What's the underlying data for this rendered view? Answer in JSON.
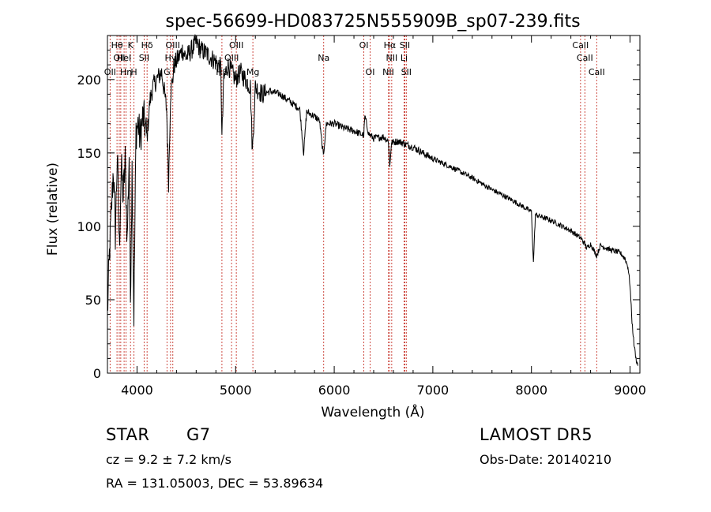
{
  "chart_data": {
    "type": "line",
    "title": "spec-56699-HD083725N555909B_sp07-239.fits",
    "xlabel": "Wavelength (Å)",
    "ylabel": "Flux (relative)",
    "xlim": [
      3700,
      9100
    ],
    "ylim": [
      0,
      230
    ],
    "xticks": [
      4000,
      5000,
      6000,
      7000,
      8000,
      9000
    ],
    "yticks": [
      0,
      50,
      100,
      150,
      200
    ],
    "grid": false,
    "series": [
      {
        "color": "#000000",
        "x": [
          3700,
          3720,
          3740,
          3760,
          3780,
          3800,
          3820,
          3840,
          3860,
          3880,
          3900,
          3920,
          3933,
          3950,
          3968,
          3990,
          4010,
          4030,
          4060,
          4080,
          4101,
          4130,
          4160,
          4200,
          4250,
          4300,
          4320,
          4340,
          4360,
          4380,
          4420,
          4460,
          4500,
          4550,
          4600,
          4650,
          4700,
          4750,
          4800,
          4850,
          4861,
          4880,
          4920,
          4960,
          5000,
          5050,
          5100,
          5150,
          5170,
          5183,
          5200,
          5270,
          5350,
          5450,
          5550,
          5650,
          5690,
          5720,
          5800,
          5850,
          5890,
          5920,
          6000,
          6100,
          6200,
          6300,
          6310,
          6350,
          6400,
          6500,
          6550,
          6563,
          6580,
          6650,
          6720,
          6800,
          6900,
          7000,
          7200,
          7400,
          7600,
          7800,
          8000,
          8020,
          8040,
          8200,
          8400,
          8498,
          8542,
          8560,
          8600,
          8662,
          8700,
          8800,
          8900,
          8950,
          8980,
          9000,
          9020,
          9040,
          9060,
          9080
        ],
        "y": [
          40,
          80,
          110,
          140,
          95,
          150,
          85,
          140,
          120,
          145,
          90,
          150,
          50,
          140,
          40,
          165,
          170,
          160,
          175,
          170,
          160,
          185,
          195,
          200,
          205,
          180,
          130,
          190,
          200,
          210,
          215,
          220,
          215,
          220,
          225,
          220,
          218,
          215,
          212,
          208,
          160,
          200,
          210,
          205,
          200,
          205,
          200,
          195,
          150,
          170,
          195,
          190,
          192,
          190,
          185,
          180,
          150,
          178,
          175,
          172,
          148,
          170,
          170,
          167,
          165,
          162,
          175,
          163,
          160,
          161,
          158,
          140,
          157,
          158,
          156,
          154,
          150,
          146,
          140,
          133,
          125,
          118,
          110,
          75,
          108,
          104,
          97,
          92,
          88,
          85,
          88,
          80,
          87,
          84,
          82,
          78,
          72,
          60,
          35,
          20,
          10,
          5
        ]
      }
    ],
    "lines": [
      {
        "x": 3727,
        "labels": [
          "OII"
        ],
        "rows": [
          3
        ]
      },
      {
        "x": 3797,
        "labels": [
          "Hθ"
        ],
        "rows": [
          1
        ]
      },
      {
        "x": 3820,
        "labels": [
          "OII"
        ],
        "rows": [
          2
        ]
      },
      {
        "x": 3835,
        "labels": [],
        "rows": []
      },
      {
        "x": 3869,
        "labels": [
          "HeI"
        ],
        "rows": [
          2
        ]
      },
      {
        "x": 3889,
        "labels": [
          "Hη"
        ],
        "rows": [
          3
        ]
      },
      {
        "x": 3934,
        "labels": [
          "K"
        ],
        "rows": [
          1
        ]
      },
      {
        "x": 3969,
        "labels": [
          "H"
        ],
        "rows": [
          3
        ]
      },
      {
        "x": 4072,
        "labels": [
          "SII"
        ],
        "rows": [
          2
        ]
      },
      {
        "x": 4102,
        "labels": [
          "Hδ"
        ],
        "rows": [
          1
        ]
      },
      {
        "x": 4304,
        "labels": [
          "G"
        ],
        "rows": [
          3
        ]
      },
      {
        "x": 4340,
        "labels": [
          "Hγ"
        ],
        "rows": [
          2
        ]
      },
      {
        "x": 4363,
        "labels": [
          "OIII"
        ],
        "rows": [
          1
        ]
      },
      {
        "x": 4861,
        "labels": [
          "Hβ"
        ],
        "rows": [
          3
        ]
      },
      {
        "x": 4959,
        "labels": [
          "OIII"
        ],
        "rows": [
          2
        ]
      },
      {
        "x": 5007,
        "labels": [
          "OIII"
        ],
        "rows": [
          1
        ]
      },
      {
        "x": 5175,
        "labels": [
          "Mg"
        ],
        "rows": [
          3
        ]
      },
      {
        "x": 5893,
        "labels": [
          "Na"
        ],
        "rows": [
          2
        ]
      },
      {
        "x": 6300,
        "labels": [
          "OI"
        ],
        "rows": [
          1
        ]
      },
      {
        "x": 6364,
        "labels": [
          "OI"
        ],
        "rows": [
          3
        ]
      },
      {
        "x": 6548,
        "labels": [
          "NII"
        ],
        "rows": [
          3
        ]
      },
      {
        "x": 6563,
        "labels": [
          "Hα"
        ],
        "rows": [
          1
        ]
      },
      {
        "x": 6583,
        "labels": [
          "NII"
        ],
        "rows": [
          2
        ]
      },
      {
        "x": 6708,
        "labels": [
          "Li"
        ],
        "rows": [
          2
        ]
      },
      {
        "x": 6716,
        "labels": [
          "SII"
        ],
        "rows": [
          1
        ]
      },
      {
        "x": 6731,
        "labels": [
          "SII"
        ],
        "rows": [
          3
        ]
      },
      {
        "x": 8498,
        "labels": [
          "CaII"
        ],
        "rows": [
          1
        ]
      },
      {
        "x": 8542,
        "labels": [
          "CaII"
        ],
        "rows": [
          2
        ]
      },
      {
        "x": 8662,
        "labels": [
          "CaII"
        ],
        "rows": [
          3
        ]
      }
    ]
  },
  "info": {
    "object_class": "STAR",
    "subclass": "G7",
    "survey": "LAMOST DR5",
    "cz": "cz = 9.2 ± 7.2 km/s",
    "obs_date": "Obs-Date: 20140210",
    "coords": "RA = 131.05003, DEC =  53.89634"
  }
}
